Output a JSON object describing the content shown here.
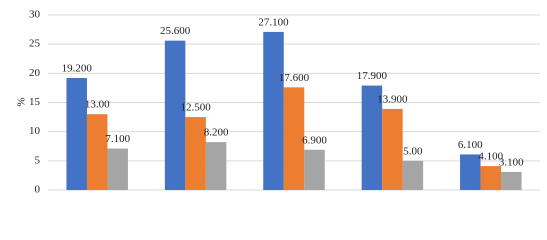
{
  "chart_data": {
    "type": "bar",
    "categories": [
      null,
      null,
      null,
      null,
      null
    ],
    "series": [
      {
        "color": "#4472c4",
        "values": [
          19.2,
          25.6,
          27.1,
          17.9,
          6.1
        ],
        "value_labels": [
          "19.200",
          "25.600",
          "27.100",
          "17.900",
          "6.100"
        ]
      },
      {
        "color": "#ed7d31",
        "values": [
          13,
          12.5,
          17.6,
          13.9,
          4.1
        ],
        "value_labels": [
          "13.00",
          "12.500",
          "17.600",
          "13.900",
          "4.100"
        ]
      },
      {
        "color": "#a5a5a5",
        "values": [
          7.1,
          8.2,
          6.9,
          5,
          3.1
        ],
        "value_labels": [
          "7.100",
          "8.200",
          "6.900",
          "5.00",
          "3.100"
        ]
      }
    ],
    "y_label": "%",
    "ylim": [
      0,
      30
    ],
    "yticks": [
      0,
      5,
      10,
      15,
      20,
      25,
      30
    ],
    "grid": true
  }
}
